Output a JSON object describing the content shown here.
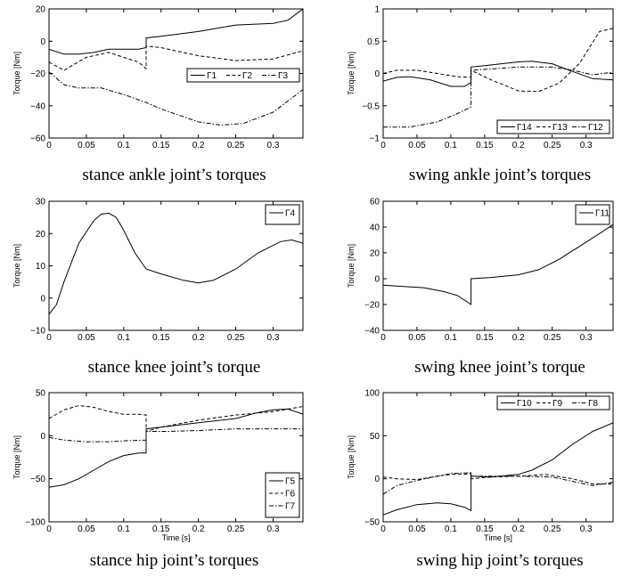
{
  "chart_data": [
    {
      "type": "line",
      "caption": "stance ankle joint’s torques",
      "ylabel": "Torque [Nm]",
      "xlabel": "",
      "xlim": [
        0,
        0.34
      ],
      "ylim": [
        -60,
        20
      ],
      "xticks": [
        "0",
        "0.05",
        "0.1",
        "0.15",
        "0.2",
        "0.25",
        "0.3"
      ],
      "yticks": [
        "20",
        "0",
        "−20",
        "−40",
        "−60"
      ],
      "legend_position": "center-right",
      "series": [
        {
          "name": "Γ1",
          "style": "solid",
          "x": [
            0,
            0.02,
            0.04,
            0.06,
            0.08,
            0.1,
            0.12,
            0.13,
            0.13,
            0.15,
            0.2,
            0.25,
            0.3,
            0.32,
            0.34
          ],
          "y": [
            -5,
            -8,
            -8,
            -7,
            -5,
            -5,
            -5,
            -4,
            2,
            3,
            6,
            10,
            11,
            13,
            20
          ]
        },
        {
          "name": "Γ2",
          "style": "dashed",
          "x": [
            0,
            0.02,
            0.05,
            0.08,
            0.1,
            0.12,
            0.13,
            0.13,
            0.15,
            0.2,
            0.25,
            0.3,
            0.34
          ],
          "y": [
            -13,
            -18,
            -10,
            -7,
            -10,
            -13,
            -17,
            -3,
            -4,
            -9,
            -12,
            -11,
            -6
          ]
        },
        {
          "name": "Γ3",
          "style": "dashdot",
          "x": [
            0,
            0.02,
            0.04,
            0.07,
            0.1,
            0.13,
            0.15,
            0.2,
            0.23,
            0.26,
            0.3,
            0.34
          ],
          "y": [
            -19,
            -27,
            -29,
            -29,
            -33,
            -38,
            -42,
            -50,
            -52,
            -51,
            -44,
            -30
          ]
        }
      ]
    },
    {
      "type": "line",
      "caption": "swing ankle joint’s torques",
      "ylabel": "Torque [Nm]",
      "xlabel": "",
      "xlim": [
        0,
        0.34
      ],
      "ylim": [
        -1,
        1
      ],
      "xticks": [
        "0",
        "0.05",
        "0.1",
        "0.15",
        "0.2",
        "0.25",
        "0.3"
      ],
      "yticks": [
        "1",
        "0.5",
        "0",
        "−0.5",
        "−1"
      ],
      "legend_position": "bottom-right",
      "series": [
        {
          "name": "Γ14",
          "style": "solid",
          "x": [
            0,
            0.02,
            0.04,
            0.07,
            0.1,
            0.12,
            0.13,
            0.13,
            0.15,
            0.2,
            0.22,
            0.25,
            0.28,
            0.31,
            0.34
          ],
          "y": [
            -0.12,
            -0.06,
            -0.05,
            -0.1,
            -0.2,
            -0.2,
            -0.14,
            0.1,
            0.12,
            0.18,
            0.19,
            0.15,
            0.03,
            -0.08,
            -0.1
          ]
        },
        {
          "name": "Γ13",
          "style": "dashed",
          "x": [
            0,
            0.02,
            0.05,
            0.08,
            0.11,
            0.13,
            0.13,
            0.16,
            0.2,
            0.23,
            0.26,
            0.29,
            0.32,
            0.34
          ],
          "y": [
            0,
            0.05,
            0.05,
            0,
            -0.05,
            -0.06,
            0.05,
            -0.1,
            -0.27,
            -0.28,
            -0.15,
            0.15,
            0.65,
            0.7
          ]
        },
        {
          "name": "Γ12",
          "style": "dashdot",
          "x": [
            0,
            0.04,
            0.08,
            0.11,
            0.13,
            0.13,
            0.16,
            0.2,
            0.25,
            0.28,
            0.31,
            0.34
          ],
          "y": [
            -0.83,
            -0.83,
            -0.75,
            -0.62,
            -0.52,
            0.05,
            0.07,
            0.1,
            0.1,
            0.05,
            -0.02,
            0.02
          ]
        }
      ]
    },
    {
      "type": "line",
      "caption": "stance knee joint’s torque",
      "ylabel": "Torque [Nm]",
      "xlabel": "",
      "xlim": [
        0,
        0.34
      ],
      "ylim": [
        -10,
        30
      ],
      "xticks": [
        "0",
        "0.05",
        "0.1",
        "0.15",
        "0.2",
        "0.25",
        "0.3"
      ],
      "yticks": [
        "30",
        "20",
        "10",
        "0",
        "−10"
      ],
      "legend_position": "top-right",
      "series": [
        {
          "name": "Γ4",
          "style": "solid",
          "x": [
            0,
            0.01,
            0.02,
            0.04,
            0.06,
            0.07,
            0.08,
            0.09,
            0.1,
            0.115,
            0.13,
            0.15,
            0.18,
            0.2,
            0.22,
            0.25,
            0.28,
            0.31,
            0.325,
            0.34
          ],
          "y": [
            -5,
            -2,
            5,
            17,
            24,
            26,
            26.3,
            25,
            21,
            14,
            9,
            7.5,
            5.5,
            4.7,
            5.5,
            9,
            14,
            17.5,
            18,
            17
          ]
        }
      ]
    },
    {
      "type": "line",
      "caption": "swing knee joint’s torque",
      "ylabel": "Torque [Nm]",
      "xlabel": "",
      "xlim": [
        0,
        0.34
      ],
      "ylim": [
        -40,
        60
      ],
      "xticks": [
        "0",
        "0.05",
        "0.1",
        "0.15",
        "0.2",
        "0.25",
        "0.3"
      ],
      "yticks": [
        "60",
        "40",
        "20",
        "0",
        "−20",
        "−40"
      ],
      "legend_position": "top-right",
      "series": [
        {
          "name": "Γ11",
          "style": "solid",
          "x": [
            0,
            0.03,
            0.06,
            0.09,
            0.11,
            0.13,
            0.13,
            0.16,
            0.2,
            0.23,
            0.26,
            0.29,
            0.32,
            0.34
          ],
          "y": [
            -5,
            -6,
            -7,
            -10,
            -13,
            -20,
            0,
            1,
            3,
            7,
            15,
            25,
            35,
            42
          ]
        }
      ]
    },
    {
      "type": "line",
      "caption": "stance hip joint’s torques",
      "ylabel": "Torque [Nm]",
      "xlabel": "Time [s]",
      "xlim": [
        0,
        0.34
      ],
      "ylim": [
        -100,
        50
      ],
      "xticks": [
        "0",
        "0.05",
        "0.1",
        "0.15",
        "0.2",
        "0.25",
        "0.3"
      ],
      "yticks": [
        "50",
        "0",
        "−50",
        "−100"
      ],
      "legend_position": "bottom-right",
      "series": [
        {
          "name": "Γ5",
          "style": "solid",
          "x": [
            0,
            0.02,
            0.04,
            0.06,
            0.08,
            0.1,
            0.12,
            0.13,
            0.13,
            0.15,
            0.2,
            0.25,
            0.28,
            0.3,
            0.32,
            0.34
          ],
          "y": [
            -60,
            -57,
            -50,
            -40,
            -30,
            -23,
            -20,
            -20,
            8,
            10,
            15,
            20,
            27,
            30,
            31,
            25
          ]
        },
        {
          "name": "Γ6",
          "style": "dashed",
          "x": [
            0,
            0.02,
            0.04,
            0.06,
            0.08,
            0.1,
            0.12,
            0.13,
            0.13,
            0.15,
            0.2,
            0.25,
            0.3,
            0.34
          ],
          "y": [
            20,
            30,
            35,
            33,
            28,
            25,
            25,
            24,
            5,
            10,
            18,
            24,
            28,
            34
          ]
        },
        {
          "name": "Γ7",
          "style": "dashdot",
          "x": [
            0,
            0.02,
            0.05,
            0.08,
            0.1,
            0.13,
            0.13,
            0.16,
            0.2,
            0.25,
            0.3,
            0.34
          ],
          "y": [
            -2,
            -5,
            -7,
            -7,
            -6,
            -5,
            5,
            5,
            6,
            8,
            8,
            8
          ]
        }
      ]
    },
    {
      "type": "line",
      "caption": "swing hip joint’s torques",
      "ylabel": "Torque [Nm]",
      "xlabel": "Time [s]",
      "xlim": [
        0,
        0.34
      ],
      "ylim": [
        -50,
        100
      ],
      "xticks": [
        "0",
        "0.05",
        "0.1",
        "0.15",
        "0.2",
        "0.25",
        "0.3"
      ],
      "yticks": [
        "100",
        "50",
        "0",
        "−50"
      ],
      "legend_position": "top-right",
      "series": [
        {
          "name": "Γ10",
          "style": "solid",
          "x": [
            0,
            0.02,
            0.05,
            0.08,
            0.1,
            0.12,
            0.13,
            0.13,
            0.16,
            0.2,
            0.22,
            0.25,
            0.28,
            0.31,
            0.34
          ],
          "y": [
            -42,
            -36,
            -30,
            -28,
            -29,
            -33,
            -37,
            3,
            2,
            5,
            10,
            22,
            40,
            55,
            65
          ]
        },
        {
          "name": "Γ9",
          "style": "dashed",
          "x": [
            0,
            0.02,
            0.05,
            0.08,
            0.1,
            0.12,
            0.13,
            0.13,
            0.16,
            0.2,
            0.24,
            0.28,
            0.31,
            0.34
          ],
          "y": [
            2,
            0,
            -1,
            3,
            5,
            5,
            6,
            0,
            2,
            3,
            5,
            0,
            -6,
            -6
          ]
        },
        {
          "name": "Γ8",
          "style": "dashdot",
          "x": [
            0,
            0.02,
            0.05,
            0.08,
            0.1,
            0.13,
            0.13,
            0.16,
            0.2,
            0.25,
            0.28,
            0.31,
            0.34
          ],
          "y": [
            -18,
            -8,
            -2,
            3,
            6,
            7,
            3,
            3,
            3,
            2,
            -3,
            -8,
            -4
          ]
        }
      ]
    }
  ]
}
